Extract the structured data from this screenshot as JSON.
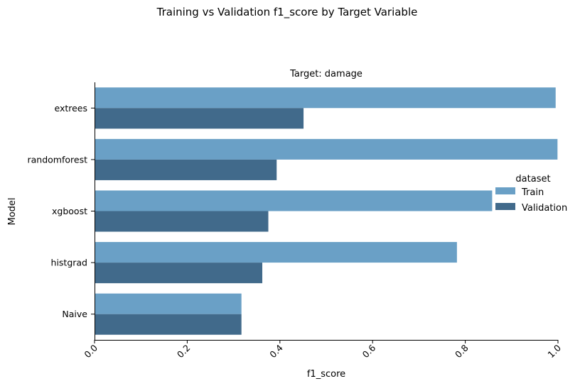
{
  "chart_data": {
    "type": "bar",
    "orientation": "horizontal",
    "title": "Training vs Validation f1_score by Target Variable",
    "subtitle": "Target: damage",
    "xlabel": "f1_score",
    "ylabel": "Model",
    "xlim": [
      0.0,
      1.0
    ],
    "x_ticks": [
      "0.0",
      "0.2",
      "0.4",
      "0.6",
      "0.8",
      "1.0"
    ],
    "categories": [
      "extrees",
      "randomforest",
      "xgboost",
      "histgrad",
      "Naive"
    ],
    "series": [
      {
        "name": "Train",
        "color": "#6aa0c6",
        "values": [
          0.995,
          0.999,
          0.858,
          0.782,
          0.317
        ]
      },
      {
        "name": "Validation",
        "color": "#416a8b",
        "values": [
          0.451,
          0.393,
          0.375,
          0.362,
          0.317
        ]
      }
    ],
    "legend": {
      "title": "dataset",
      "placement": "center-right"
    },
    "grid": false
  }
}
